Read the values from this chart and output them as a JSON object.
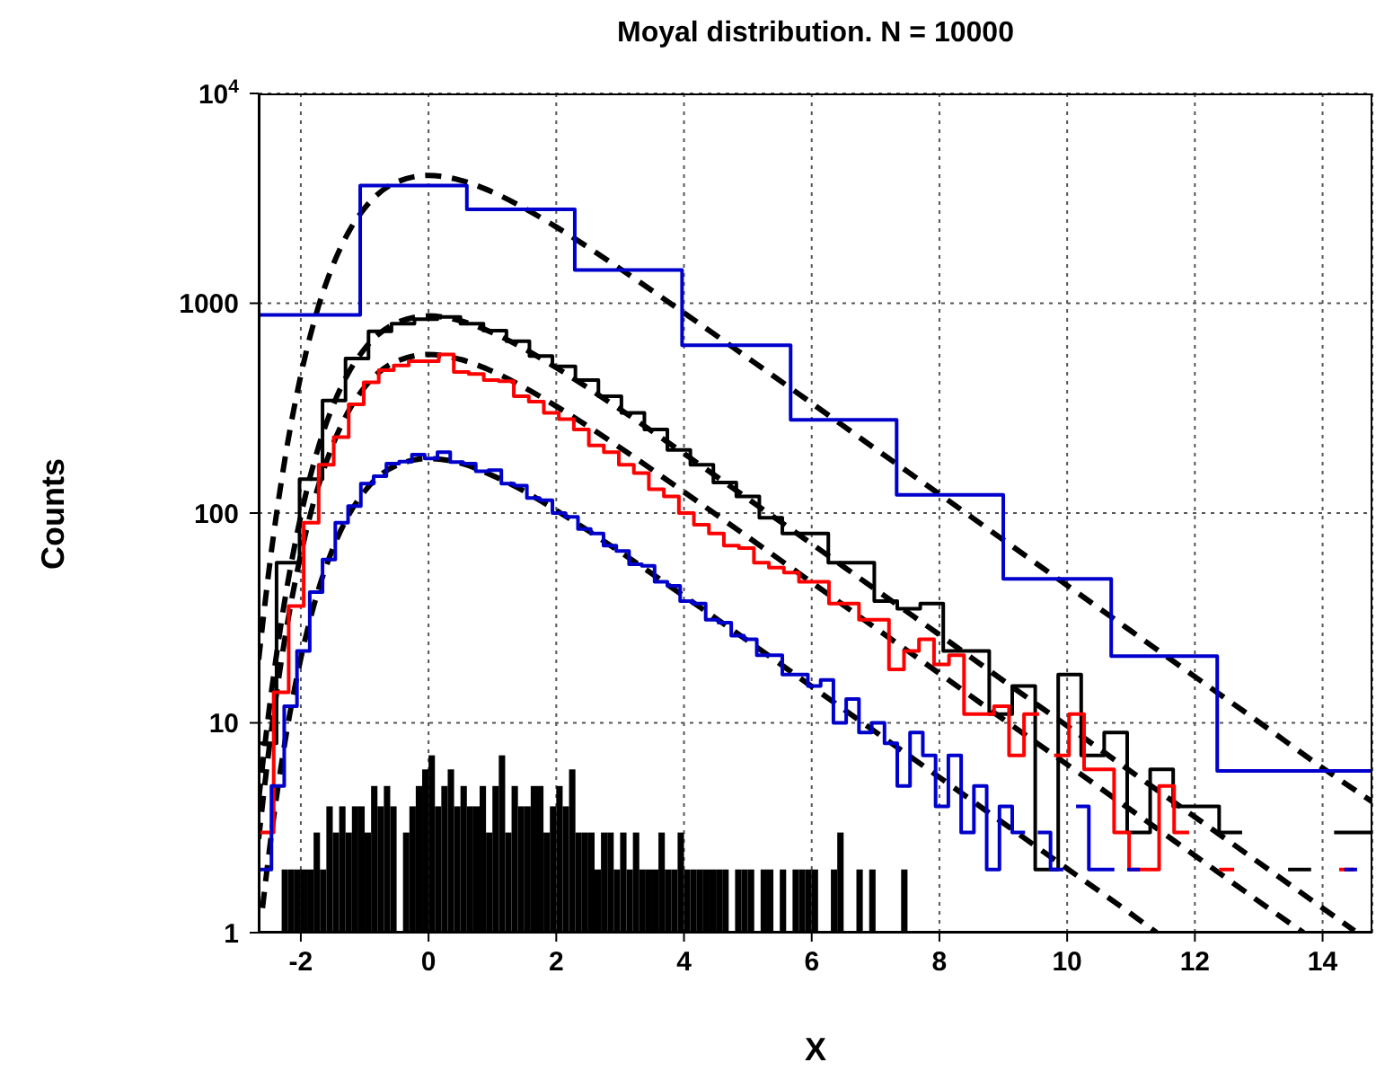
{
  "chart_data": {
    "type": "histogram",
    "title": "Moyal distribution. N = 10000",
    "xlabel": "X",
    "ylabel": "Counts",
    "log": "y",
    "grid": true,
    "xlim": [
      -2.66,
      14.78
    ],
    "xticks": [
      -2,
      0,
      2,
      4,
      6,
      8,
      10,
      12,
      14
    ],
    "ylim": [
      1,
      10000
    ],
    "yticks": [
      1,
      10,
      100,
      1000,
      {
        "value": 10000,
        "label": "10$^{4}$"
      }
    ],
    "series": [
      {
        "type": "line",
        "color": "#000000",
        "line_style": "dashed",
        "x": [
          -2.66,
          -2.5,
          -2.25,
          -2,
          -1.75,
          -1.5,
          -1.25,
          -1,
          -0.5,
          0,
          0.5,
          1,
          1.5,
          2,
          3,
          4,
          5,
          6,
          7,
          8,
          9,
          10,
          11,
          12,
          13,
          14,
          14.78
        ],
        "values": [
          20,
          53,
          180,
          453,
          908,
          1510,
          2190,
          2840,
          3780,
          4070,
          3860,
          3390,
          2840,
          2310,
          1460,
          900,
          549,
          334,
          202,
          123,
          74.5,
          45.2,
          27.4,
          16.6,
          10.1,
          6.1,
          4.2
        ]
      },
      {
        "type": "line",
        "color": "#000000",
        "line_style": "dashed",
        "x": [
          -2.66,
          -2.5,
          -2.25,
          -2,
          -1.75,
          -1.5,
          -1.25,
          -1,
          -0.5,
          0,
          0.5,
          1,
          1.5,
          2,
          3,
          4,
          5,
          6,
          7,
          8,
          9,
          10,
          11,
          12,
          13,
          14,
          14.5
        ],
        "values": [
          4.3,
          11.3,
          38.5,
          96.9,
          194,
          323,
          468,
          607,
          807,
          870,
          825,
          724,
          606,
          493,
          312,
          192,
          117,
          71.3,
          43.2,
          26.3,
          15.9,
          9.67,
          5.86,
          3.56,
          2.16,
          1.31,
          1.02
        ]
      },
      {
        "type": "line",
        "color": "#000000",
        "line_style": "dashed",
        "x": [
          -2.66,
          -2.5,
          -2.25,
          -2,
          -1.75,
          -1.5,
          -1.25,
          -1,
          -0.5,
          0,
          0.5,
          1,
          1.5,
          2,
          3,
          4,
          5,
          6,
          7,
          8,
          9,
          10,
          11,
          12,
          13,
          13.7
        ],
        "values": [
          2.8,
          7.4,
          25.2,
          63.5,
          127,
          211,
          307,
          398,
          529,
          570,
          540,
          474,
          397,
          323,
          205,
          126,
          76.9,
          46.7,
          28.3,
          17.2,
          10.4,
          6.33,
          3.84,
          2.33,
          1.41,
          1.0
        ]
      },
      {
        "type": "line",
        "color": "#000000",
        "line_style": "dashed",
        "x": [
          -2.6,
          -2.5,
          -2.25,
          -2,
          -1.75,
          -1.5,
          -1.25,
          -1,
          -0.5,
          0,
          0.5,
          1,
          1.5,
          2,
          3,
          4,
          5,
          6,
          7,
          8,
          9,
          10,
          11,
          11.4
        ],
        "values": [
          1.31,
          2.37,
          8.04,
          20.3,
          40.6,
          67.5,
          97.9,
          127,
          169,
          182,
          173,
          151,
          127,
          103,
          65.3,
          40.2,
          24.6,
          14.9,
          9.05,
          5.5,
          3.33,
          2.02,
          1.23,
          1.0
        ]
      },
      {
        "type": "step",
        "color": "#0000cc",
        "x": [
          -2.66,
          -1.07,
          0.6,
          2.29,
          3.97,
          5.67,
          7.33,
          9.0,
          10.69,
          12.35,
          14.78
        ],
        "values": [
          880,
          3640,
          2800,
          1440,
          630,
          278,
          122,
          48.6,
          20.8,
          5.9,
          5.9
        ]
      },
      {
        "type": "step",
        "color": "#000000",
        "x": [
          -2.66,
          -2.38,
          -2.02,
          -1.66,
          -1.3,
          -0.94,
          -0.58,
          -0.22,
          0.14,
          0.5,
          0.86,
          1.22,
          1.58,
          1.94,
          2.3,
          2.66,
          3.02,
          3.38,
          3.74,
          4.1,
          4.46,
          4.82,
          5.18,
          5.54,
          5.9,
          6.26,
          6.62,
          6.98,
          7.34,
          7.7,
          8.06,
          8.42,
          8.78,
          9.14,
          9.5,
          9.86,
          10.22,
          10.58,
          10.94,
          11.3,
          11.66,
          12.02,
          12.38,
          12.74,
          13.1,
          13.46,
          13.82,
          14.18,
          14.54,
          14.78
        ],
        "values": [
          8,
          58,
          145,
          344,
          545,
          735,
          800,
          840,
          860,
          800,
          740,
          660,
          560,
          500,
          430,
          360,
          300,
          250,
          200,
          170,
          140,
          120,
          95,
          80,
          80,
          58,
          58,
          38,
          35,
          37,
          22,
          22,
          11,
          15,
          2,
          17,
          7,
          9,
          3,
          6,
          4,
          4,
          3,
          null,
          null,
          2,
          null,
          3,
          3,
          3
        ]
      },
      {
        "type": "step",
        "color": "#ff0000",
        "x": [
          -2.66,
          -2.425,
          -2.19,
          -1.955,
          -1.72,
          -1.485,
          -1.25,
          -1.015,
          -0.78,
          -0.545,
          -0.31,
          -0.075,
          0.16,
          0.395,
          0.63,
          0.865,
          1.1,
          1.335,
          1.57,
          1.805,
          2.04,
          2.275,
          2.51,
          2.745,
          2.98,
          3.215,
          3.45,
          3.685,
          3.92,
          4.155,
          4.39,
          4.625,
          4.86,
          5.095,
          5.33,
          5.565,
          5.8,
          6.035,
          6.27,
          6.505,
          6.74,
          6.975,
          7.21,
          7.445,
          7.68,
          7.915,
          8.15,
          8.385,
          8.62,
          8.855,
          9.09,
          9.325,
          9.56,
          9.795,
          10.03,
          10.265,
          10.5,
          10.735,
          10.97,
          11.205,
          11.44,
          11.675,
          11.91,
          12.145,
          12.38,
          12.615,
          12.85,
          13.085,
          13.32,
          13.555,
          13.79,
          14.025,
          14.26,
          14.495
        ],
        "values": [
          3,
          14,
          36,
          90,
          170,
          230,
          330,
          420,
          480,
          505,
          530,
          530,
          570,
          470,
          460,
          430,
          425,
          360,
          340,
          300,
          280,
          250,
          210,
          195,
          170,
          155,
          130,
          120,
          100,
          88,
          80,
          70,
          68,
          58,
          55,
          52,
          47,
          47,
          37,
          37,
          31,
          31,
          18,
          22,
          25,
          19,
          21,
          11,
          11,
          12,
          7,
          11,
          null,
          7,
          11,
          6,
          6,
          3,
          2,
          2,
          5,
          3,
          null,
          null,
          2,
          null,
          null,
          null,
          null,
          null,
          null,
          null,
          2,
          2
        ]
      },
      {
        "type": "step",
        "color": "#0000cc",
        "x": [
          -2.66,
          -2.46,
          -2.26,
          -2.06,
          -1.86,
          -1.66,
          -1.46,
          -1.26,
          -1.06,
          -0.86,
          -0.66,
          -0.46,
          -0.26,
          -0.06,
          0.14,
          0.34,
          0.54,
          0.74,
          0.94,
          1.14,
          1.34,
          1.54,
          1.74,
          1.94,
          2.14,
          2.34,
          2.54,
          2.74,
          2.94,
          3.14,
          3.34,
          3.54,
          3.74,
          3.94,
          4.14,
          4.34,
          4.54,
          4.74,
          4.94,
          5.14,
          5.34,
          5.54,
          5.74,
          5.94,
          6.14,
          6.34,
          6.54,
          6.74,
          6.94,
          7.14,
          7.34,
          7.54,
          7.74,
          7.94,
          8.14,
          8.34,
          8.54,
          8.74,
          8.94,
          9.14,
          9.34,
          9.54,
          9.74,
          9.94,
          10.14,
          10.34,
          10.54,
          10.74,
          10.94,
          11.14,
          11.34,
          11.54,
          11.74,
          11.94,
          12.14,
          12.34,
          12.54,
          12.74,
          12.94,
          13.14,
          13.34,
          13.54,
          13.74,
          13.94,
          14.14,
          14.34,
          14.54
        ],
        "values": [
          2,
          5,
          12,
          22,
          42,
          60,
          90,
          108,
          138,
          150,
          172,
          176,
          190,
          182,
          195,
          175,
          172,
          158,
          160,
          138,
          135,
          118,
          115,
          100,
          96,
          84,
          80,
          70,
          66,
          57,
          56,
          47,
          45,
          38,
          37,
          31,
          30,
          26,
          25,
          21,
          21,
          17,
          17,
          15,
          16,
          10,
          13,
          9,
          10,
          8,
          5,
          9,
          7,
          4,
          7,
          3,
          5,
          2,
          4,
          3,
          null,
          3,
          2,
          null,
          4,
          2,
          2,
          null,
          2,
          null,
          null,
          null,
          null,
          null,
          null,
          null,
          null,
          null,
          null,
          null,
          null,
          null,
          null,
          null,
          null,
          2,
          2
        ]
      },
      {
        "color": "#000000",
        "bins": [
          -2.3,
          -2.2,
          -2.1,
          -2,
          -1.9,
          -1.8,
          -1.7,
          -1.6,
          -1.5,
          -1.4,
          -1.3,
          -1.2,
          -1.1,
          -1,
          -0.9,
          -0.8,
          -0.7,
          -0.6,
          -0.5,
          -0.4,
          -0.3,
          -0.2,
          -0.1,
          0,
          0.1,
          0.2,
          0.3,
          0.4,
          0.5,
          0.6,
          0.7,
          0.8,
          0.9,
          1,
          1.1,
          1.2,
          1.3,
          1.4,
          1.5,
          1.6,
          1.7,
          1.8,
          1.9,
          2,
          2.1,
          2.2,
          2.3,
          2.4,
          2.5,
          2.6,
          2.7,
          2.8,
          2.9,
          3,
          3.1,
          3.2,
          3.3,
          3.4,
          3.5,
          3.6,
          3.7,
          3.8,
          3.9,
          4,
          4.1,
          4.2,
          4.3,
          4.4,
          4.5,
          4.6,
          4.7,
          4.8,
          4.9,
          5,
          5.1,
          5.2,
          5.3,
          5.4,
          5.5,
          5.6,
          5.7,
          5.8,
          5.9,
          6,
          6.1,
          6.3,
          6.4,
          6.5,
          6.7,
          6.8,
          6.9,
          7,
          7.4,
          7.5
        ],
        "values": [
          2,
          2,
          2,
          2,
          2,
          3,
          2,
          4,
          3,
          4,
          3,
          4,
          4,
          3,
          5,
          4,
          5,
          4,
          null,
          3,
          4,
          5,
          6,
          7,
          4,
          5,
          6,
          4,
          5,
          4,
          4,
          5,
          3,
          5,
          7,
          3,
          5,
          4,
          4,
          5,
          5,
          3,
          4,
          5,
          4,
          6,
          3,
          3,
          3,
          2,
          3,
          3,
          2,
          3,
          2,
          3,
          2,
          2,
          2,
          3,
          2,
          2,
          3,
          2,
          2,
          2,
          2,
          2,
          2,
          2,
          null,
          2,
          2,
          2,
          null,
          2,
          2,
          null,
          2,
          null,
          2,
          2,
          2,
          2,
          null,
          2,
          3,
          null,
          2,
          null,
          2,
          null,
          2
        ]
      }
    ]
  }
}
